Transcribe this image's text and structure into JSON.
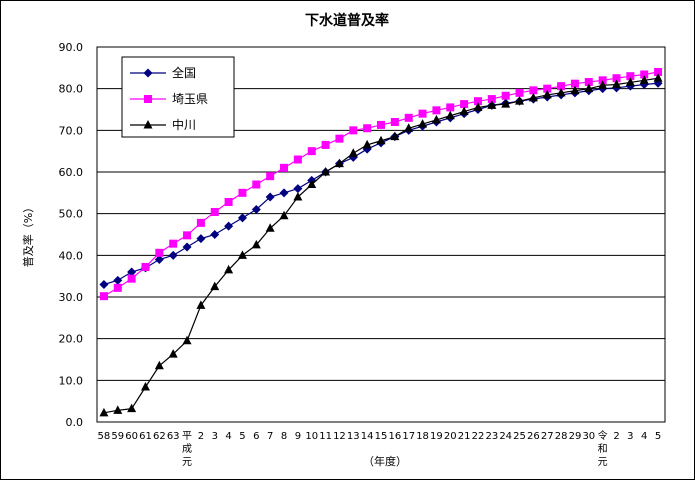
{
  "chart_data": {
    "type": "line",
    "title": "下水道普及率",
    "ylabel": "普及率（%）",
    "xlabel": "（年度）",
    "ylim": [
      0,
      90
    ],
    "y_ticks": [
      "0.0",
      "10.0",
      "20.0",
      "30.0",
      "40.0",
      "50.0",
      "60.0",
      "70.0",
      "80.0",
      "90.0"
    ],
    "x_tick_labels": [
      "58",
      "59",
      "60",
      "61",
      "62",
      "63",
      "平\n成\n元",
      "2",
      "3",
      "4",
      "5",
      "6",
      "7",
      "8",
      "9",
      "10",
      "11",
      "12",
      "13",
      "14",
      "15",
      "16",
      "17",
      "18",
      "19",
      "20",
      "21",
      "22",
      "23",
      "24",
      "25",
      "26",
      "27",
      "28",
      "29",
      "30",
      "令\n和\n元",
      "2",
      "3",
      "4",
      "5"
    ],
    "grid": "horizontal",
    "legend_position": "top-left",
    "series": [
      {
        "name": "全国",
        "color": "#000080",
        "marker": "diamond",
        "values": [
          33.0,
          34.0,
          36.0,
          37.0,
          39.0,
          40.0,
          42.0,
          44.0,
          45.0,
          47.0,
          49.0,
          51.0,
          54.0,
          55.0,
          56.0,
          58.0,
          60.0,
          62.0,
          63.5,
          65.5,
          67.0,
          68.5,
          70.0,
          71.0,
          72.0,
          73.0,
          74.0,
          75.0,
          76.0,
          76.5,
          77.0,
          77.5,
          78.0,
          78.5,
          79.0,
          79.5,
          80.0,
          80.2,
          80.6,
          81.0,
          81.3
        ]
      },
      {
        "name": "埼玉県",
        "color": "#ff00ff",
        "marker": "square",
        "values": [
          30.2,
          32.2,
          34.4,
          37.2,
          40.6,
          42.8,
          44.8,
          47.8,
          50.4,
          52.8,
          55.0,
          57.0,
          59.0,
          61.0,
          63.0,
          65.0,
          66.5,
          68.0,
          70.0,
          70.5,
          71.3,
          72.0,
          73.0,
          74.0,
          74.8,
          75.5,
          76.3,
          77.0,
          77.5,
          78.3,
          79.0,
          79.6,
          80.0,
          80.6,
          81.2,
          81.6,
          82.0,
          82.5,
          83.0,
          83.4,
          84.0
        ]
      },
      {
        "name": "中川",
        "color": "#000000",
        "marker": "triangle",
        "values": [
          2.2,
          2.8,
          3.2,
          8.4,
          13.5,
          16.3,
          19.5,
          28.0,
          32.5,
          36.5,
          40.0,
          42.5,
          46.5,
          49.5,
          54.0,
          57.0,
          60.0,
          62.0,
          64.5,
          66.5,
          67.5,
          68.5,
          70.5,
          71.5,
          72.5,
          73.5,
          74.5,
          75.5,
          76.0,
          76.3,
          77.0,
          77.8,
          78.5,
          79.0,
          79.5,
          80.0,
          80.8,
          81.0,
          81.5,
          82.0,
          82.5
        ]
      }
    ]
  }
}
